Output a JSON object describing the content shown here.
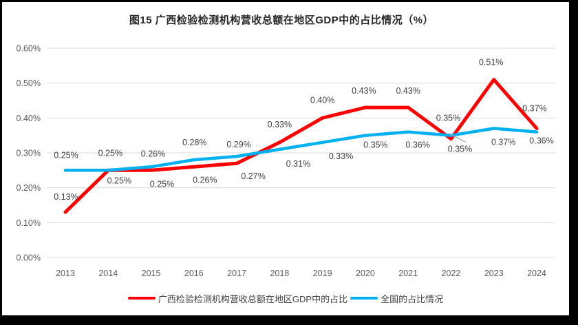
{
  "title": "图15 广西检验检测机构营收总额在地区GDP中的占比情况（%）",
  "colors": {
    "guangxi_line": "#FF0000",
    "national_line": "#00B0F0",
    "gridline": "#D9D9D9",
    "axis_text": "#595959",
    "data_label_text": "#404040",
    "leader_line": "#A6A6A6",
    "frame_border": "#000000",
    "background": "#FFFFFF",
    "title_text": "#262626"
  },
  "chart_data": {
    "type": "line",
    "title": "图15 广西检验检测机构营收总额在地区GDP中的占比情况（%）",
    "categories": [
      "2013",
      "2014",
      "2015",
      "2016",
      "2017",
      "2018",
      "2019",
      "2020",
      "2021",
      "2022",
      "2023",
      "2024"
    ],
    "unit": "%",
    "series": [
      {
        "name": "广西检验检测机构营收总额在地区GDP中的占比",
        "color": "#FF0000",
        "values": [
          0.13,
          0.25,
          0.25,
          0.26,
          0.27,
          0.33,
          0.4,
          0.43,
          0.43,
          0.35,
          0.51,
          0.37
        ],
        "labels": [
          "0.13%",
          "0.25%",
          "0.25%",
          "0.26%",
          "0.27%",
          "0.33%",
          "0.40%",
          "0.43%",
          "0.43%",
          "0.35%",
          "0.51%",
          "0.37%"
        ],
        "label_pos": [
          "above",
          "below",
          "below",
          "below",
          "below",
          "above",
          "above",
          "above",
          "above",
          "above",
          "above",
          "above"
        ]
      },
      {
        "name": "全国的占比情况",
        "color": "#00B0F0",
        "values": [
          0.25,
          0.25,
          0.26,
          0.28,
          0.29,
          0.31,
          0.33,
          0.35,
          0.36,
          0.35,
          0.37,
          0.36
        ],
        "labels": [
          "0.25%",
          "0.25%",
          "0.26%",
          "0.28%",
          "0.29%",
          "0.31%",
          "0.33%",
          "0.35%",
          "0.36%",
          "0.35%",
          "0.37%",
          "0.36%"
        ],
        "label_pos": [
          "above",
          "above",
          "above",
          "above",
          "above",
          "below",
          "below",
          "below",
          "below",
          "below",
          "below",
          "below"
        ]
      }
    ],
    "xlabel": "",
    "ylabel": "",
    "ylim": [
      0,
      0.6
    ],
    "y_ticks": [
      {
        "label": "0.00%",
        "value": 0.0
      },
      {
        "label": "0.10%",
        "value": 0.1
      },
      {
        "label": "0.20%",
        "value": 0.2
      },
      {
        "label": "0.30%",
        "value": 0.3
      },
      {
        "label": "0.40%",
        "value": 0.4
      },
      {
        "label": "0.50%",
        "value": 0.5
      },
      {
        "label": "0.60%",
        "value": 0.6
      }
    ],
    "grid": true,
    "legend_position": "bottom",
    "callout": {
      "series_index": 1,
      "point_index": 9,
      "note": "gray leader line from 2022 national data point to its 0.35% label"
    }
  },
  "legend": {
    "items": [
      {
        "label": "广西检验检测机构营收总额在地区GDP中的占比",
        "color": "#FF0000"
      },
      {
        "label": "全国的占比情况",
        "color": "#00B0F0"
      }
    ]
  }
}
